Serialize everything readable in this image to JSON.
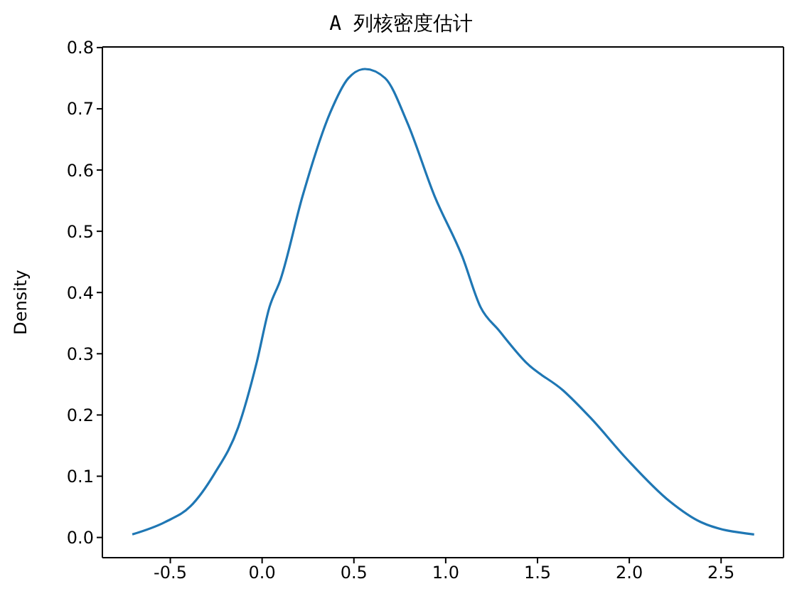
{
  "chart_data": {
    "type": "line",
    "title": "A 列核密度估计",
    "ylabel": "Density",
    "x": [
      -0.707,
      -0.53,
      -0.39,
      -0.26,
      -0.13,
      -0.03,
      0.04,
      0.1,
      0.22,
      0.37,
      0.47,
      0.56,
      0.67,
      0.79,
      0.94,
      1.09,
      1.19,
      1.29,
      1.44,
      1.64,
      1.79,
      1.99,
      2.22,
      2.39,
      2.68
    ],
    "series": [
      {
        "color": "#1f77b4",
        "values": [
          0.005,
          0.025,
          0.051,
          0.104,
          0.18,
          0.285,
          0.376,
          0.421,
          0.557,
          0.693,
          0.75,
          0.765,
          0.75,
          0.678,
          0.557,
          0.459,
          0.376,
          0.338,
          0.285,
          0.24,
          0.195,
          0.127,
          0.059,
          0.025,
          0.005
        ]
      }
    ],
    "xlim": [
      -0.87,
      2.84
    ],
    "xticks": [
      -0.5,
      {
        "value": 0,
        "label": "0.0"
      },
      0.5,
      {
        "value": 1,
        "label": "1.0"
      },
      1.5,
      {
        "value": 2,
        "label": "2.0"
      },
      2.5
    ],
    "ylim": [
      -0.033,
      0.801
    ],
    "yticks": [
      {
        "value": 0,
        "label": "0.0"
      },
      0.1,
      0.2,
      0.3,
      0.4,
      0.5,
      0.6,
      0.7,
      0.8
    ]
  }
}
